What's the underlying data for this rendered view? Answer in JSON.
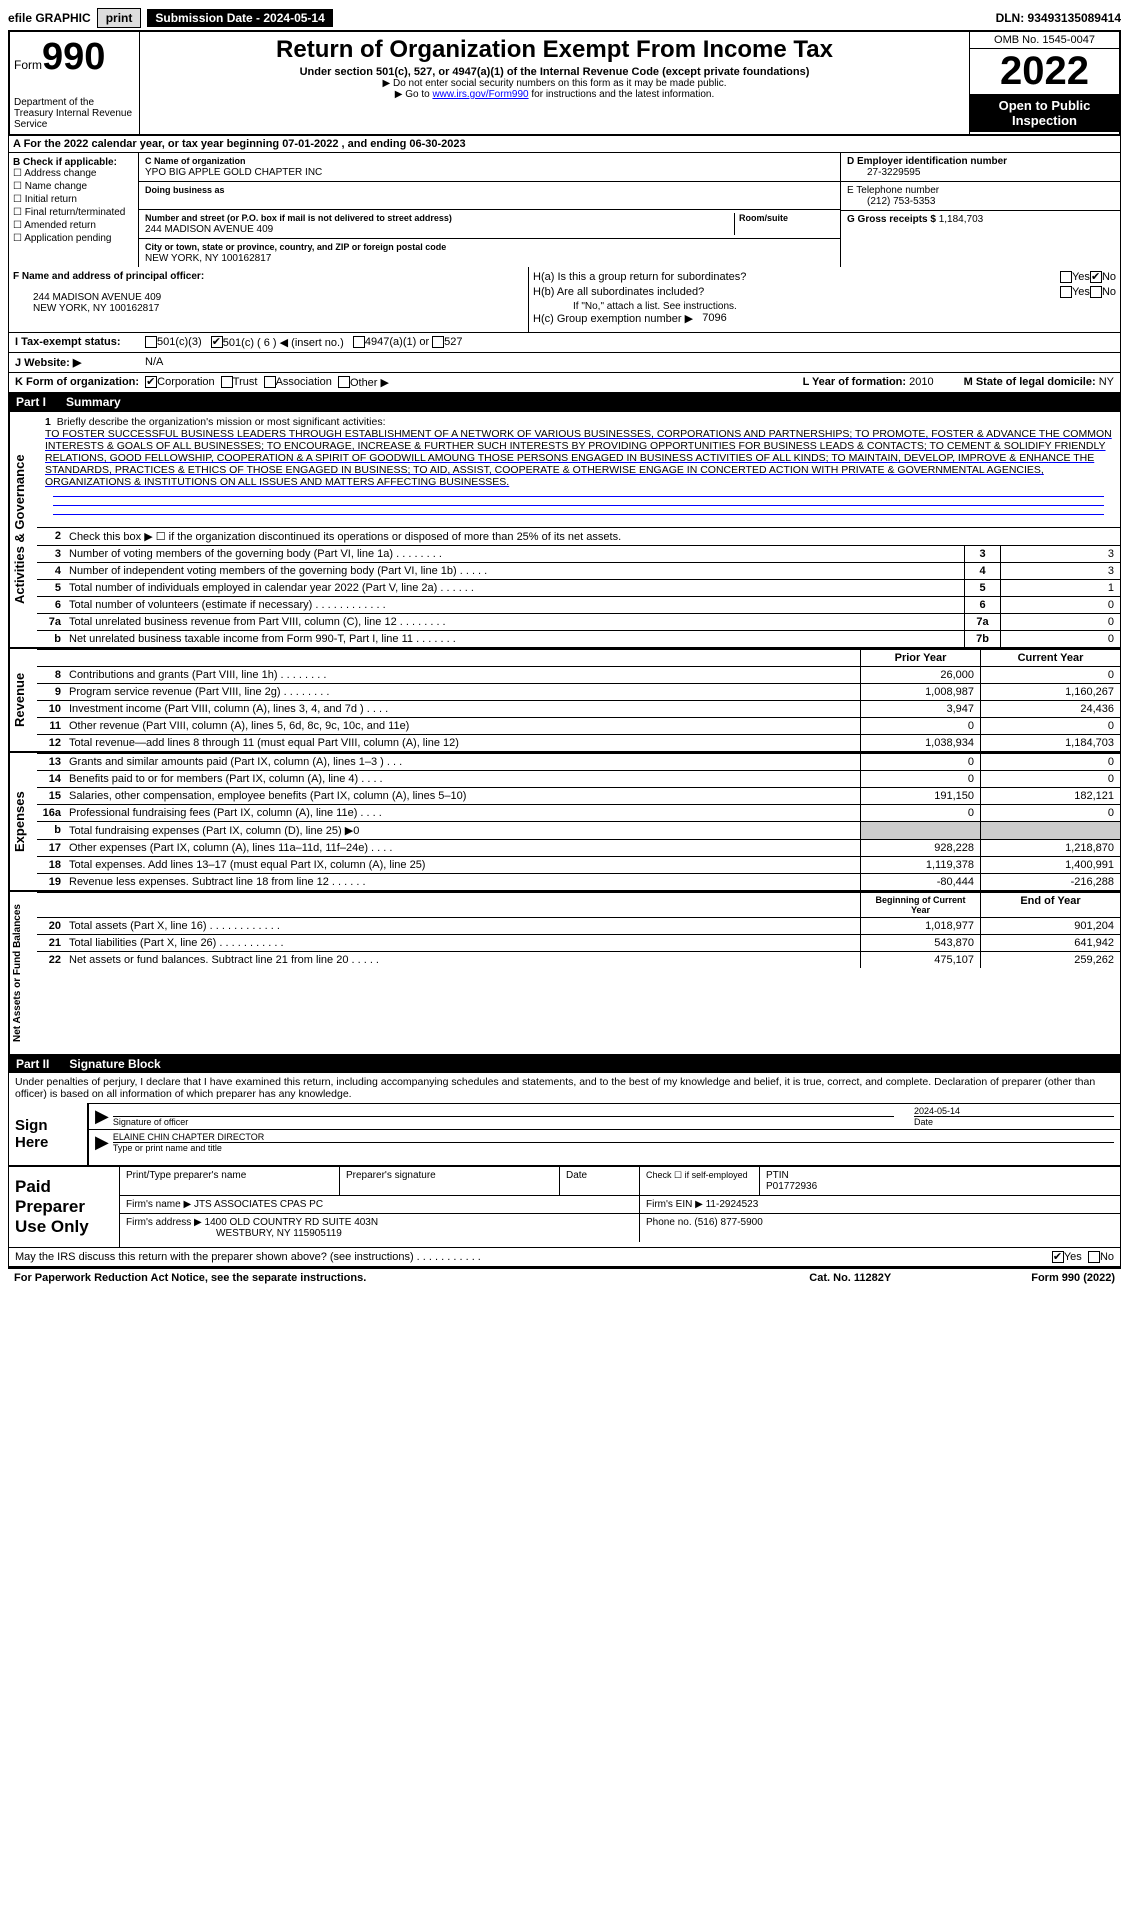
{
  "top": {
    "efile": "efile GRAPHIC",
    "print": "print",
    "submission": "Submission Date - 2024-05-14",
    "dln": "DLN: 93493135089414"
  },
  "header": {
    "form_prefix": "Form",
    "form_no": "990",
    "dept": "Department of the Treasury Internal Revenue Service",
    "title": "Return of Organization Exempt From Income Tax",
    "sub1": "Under section 501(c), 527, or 4947(a)(1) of the Internal Revenue Code (except private foundations)",
    "sub2": "▶ Do not enter social security numbers on this form as it may be made public.",
    "sub3a": "▶ Go to ",
    "sub3b": "www.irs.gov/Form990",
    "sub3c": " for instructions and the latest information.",
    "omb": "OMB No. 1545-0047",
    "year": "2022",
    "open": "Open to Public Inspection"
  },
  "secA": "A For the 2022 calendar year, or tax year beginning 07-01-2022    , and ending 06-30-2023",
  "colB": {
    "label": "B Check if applicable:",
    "items": [
      "Address change",
      "Name change",
      "Initial return",
      "Final return/terminated",
      "Amended return",
      "Application pending"
    ]
  },
  "colC": {
    "name_lab": "C Name of organization",
    "name": "YPO BIG APPLE GOLD CHAPTER INC",
    "dba_lab": "Doing business as",
    "dba": "",
    "addr_lab": "Number and street (or P.O. box if mail is not delivered to street address)",
    "addr": "244 MADISON AVENUE 409",
    "room_lab": "Room/suite",
    "city_lab": "City or town, state or province, country, and ZIP or foreign postal code",
    "city": "NEW YORK, NY  100162817"
  },
  "colDE": {
    "d_lab": "D Employer identification number",
    "d": "27-3229595",
    "e_lab": "E Telephone number",
    "e": "(212) 753-5353",
    "g_lab": "G Gross receipts $",
    "g": "1,184,703"
  },
  "blockF": {
    "f_lab": "F  Name and address of principal officer:",
    "f_addr1": "244 MADISON AVENUE 409",
    "f_addr2": "NEW YORK, NY  100162817"
  },
  "blockH": {
    "ha": "H(a)  Is this a group return for subordinates?",
    "hb": "H(b)  Are all subordinates included?",
    "hb_note": "If \"No,\" attach a list. See instructions.",
    "hc": "H(c)  Group exemption number ▶",
    "hc_val": "7096",
    "yes": "Yes",
    "no": "No"
  },
  "lineI": {
    "lab": "I    Tax-exempt status:",
    "o1": "501(c)(3)",
    "o2": "501(c) ( 6 ) ◀ (insert no.)",
    "o3": "4947(a)(1) or",
    "o4": "527"
  },
  "lineJ": {
    "lab": "J   Website: ▶",
    "val": "N/A"
  },
  "lineK": {
    "lab": "K Form of organization:",
    "o1": "Corporation",
    "o2": "Trust",
    "o3": "Association",
    "o4": "Other ▶",
    "l_lab": "L Year of formation:",
    "l": "2010",
    "m_lab": "M State of legal domicile:",
    "m": "NY"
  },
  "part1": {
    "hdr": "Part I",
    "title": "Summary"
  },
  "mission": {
    "n": "1",
    "lab": "Briefly describe the organization's mission or most significant activities:",
    "txt": "TO FOSTER SUCCESSFUL BUSINESS LEADERS THROUGH ESTABLISHMENT OF A NETWORK OF VARIOUS BUSINESSES, CORPORATIONS AND PARTNERSHIPS; TO PROMOTE, FOSTER & ADVANCE THE COMMON INTERESTS & GOALS OF ALL BUSINESSES; TO ENCOURAGE, INCREASE & FURTHER SUCH INTERESTS BY PROVIDING OPPORTUNITIES FOR BUSINESS LEADS & CONTACTS; TO CEMENT & SOLIDIFY FRIENDLY RELATIONS, GOOD FELLOWSHIP, COOPERATION & A SPIRIT OF GOODWILL AMOUNG THOSE PERSONS ENGAGED IN BUSINESS ACTIVITIES OF ALL KINDS; TO MAINTAIN, DEVELOP, IMPROVE & ENHANCE THE STANDARDS, PRACTICES & ETHICS OF THOSE ENGAGED IN BUSINESS; TO AID, ASSIST, COOPERATE & OTHERWISE ENGAGE IN CONCERTED ACTION WITH PRIVATE & GOVERNMENTAL AGENCIES, ORGANIZATIONS & INSTITUTIONS ON ALL ISSUES AND MATTERS AFFECTING BUSINESSES."
  },
  "vtabs": {
    "ag": "Activities & Governance",
    "rev": "Revenue",
    "exp": "Expenses",
    "na": "Net Assets or Fund Balances"
  },
  "rows_ag": [
    {
      "n": "2",
      "desc": "Check this box ▶ ☐  if the organization discontinued its operations or disposed of more than 25% of its net assets.",
      "nobox": true
    },
    {
      "n": "3",
      "desc": "Number of voting members of the governing body (Part VI, line 1a)    .    .    .    .    .    .    .    .",
      "bn": "3",
      "v": "3"
    },
    {
      "n": "4",
      "desc": "Number of independent voting members of the governing body (Part VI, line 1b)    .    .    .    .    .",
      "bn": "4",
      "v": "3"
    },
    {
      "n": "5",
      "desc": "Total number of individuals employed in calendar year 2022 (Part V, line 2a)    .    .    .    .    .    .",
      "bn": "5",
      "v": "1"
    },
    {
      "n": "6",
      "desc": "Total number of volunteers (estimate if necessary)   .    .    .    .    .    .    .    .    .    .    .    .",
      "bn": "6",
      "v": "0"
    },
    {
      "n": "7a",
      "desc": "Total unrelated business revenue from Part VIII, column (C), line 12   .    .    .    .    .    .    .    .",
      "bn": "7a",
      "v": "0"
    },
    {
      "n": "b",
      "desc": "Net unrelated business taxable income from Form 990-T, Part I, line 11   .    .    .    .    .    .    .",
      "bn": "7b",
      "v": "0"
    }
  ],
  "hdr_pc": {
    "py": "Prior Year",
    "cy": "Current Year"
  },
  "rows_rev": [
    {
      "n": "8",
      "desc": "Contributions and grants (Part VIII, line 1h)   .    .    .    .    .    .    .    .",
      "py": "26,000",
      "cy": "0"
    },
    {
      "n": "9",
      "desc": "Program service revenue (Part VIII, line 2g)   .    .    .    .    .    .    .    .",
      "py": "1,008,987",
      "cy": "1,160,267"
    },
    {
      "n": "10",
      "desc": "Investment income (Part VIII, column (A), lines 3, 4, and 7d )   .    .    .    .",
      "py": "3,947",
      "cy": "24,436"
    },
    {
      "n": "11",
      "desc": "Other revenue (Part VIII, column (A), lines 5, 6d, 8c, 9c, 10c, and 11e)",
      "py": "0",
      "cy": "0"
    },
    {
      "n": "12",
      "desc": "Total revenue—add lines 8 through 11 (must equal Part VIII, column (A), line 12)",
      "py": "1,038,934",
      "cy": "1,184,703"
    }
  ],
  "rows_exp": [
    {
      "n": "13",
      "desc": "Grants and similar amounts paid (Part IX, column (A), lines 1–3 )   .    .    .",
      "py": "0",
      "cy": "0"
    },
    {
      "n": "14",
      "desc": "Benefits paid to or for members (Part IX, column (A), line 4)   .    .    .    .",
      "py": "0",
      "cy": "0"
    },
    {
      "n": "15",
      "desc": "Salaries, other compensation, employee benefits (Part IX, column (A), lines 5–10)",
      "py": "191,150",
      "cy": "182,121"
    },
    {
      "n": "16a",
      "desc": "Professional fundraising fees (Part IX, column (A), line 11e)   .    .    .    .",
      "py": "0",
      "cy": "0"
    },
    {
      "n": "b",
      "desc": "Total fundraising expenses (Part IX, column (D), line 25) ▶0",
      "gray": true
    },
    {
      "n": "17",
      "desc": "Other expenses (Part IX, column (A), lines 11a–11d, 11f–24e)    .    .    .    .",
      "py": "928,228",
      "cy": "1,218,870"
    },
    {
      "n": "18",
      "desc": "Total expenses. Add lines 13–17 (must equal Part IX, column (A), line 25)",
      "py": "1,119,378",
      "cy": "1,400,991"
    },
    {
      "n": "19",
      "desc": "Revenue less expenses. Subtract line 18 from line 12   .    .    .    .    .    .",
      "py": "-80,444",
      "cy": "-216,288"
    }
  ],
  "hdr_na": {
    "boy": "Beginning of Current Year",
    "eoy": "End of Year"
  },
  "rows_na": [
    {
      "n": "20",
      "desc": "Total assets (Part X, line 16)   .    .    .    .    .    .    .    .    .    .    .    .",
      "py": "1,018,977",
      "cy": "901,204"
    },
    {
      "n": "21",
      "desc": "Total liabilities (Part X, line 26)   .    .    .    .    .    .    .    .    .    .    .",
      "py": "543,870",
      "cy": "641,942"
    },
    {
      "n": "22",
      "desc": "Net assets or fund balances. Subtract line 21 from line 20   .    .    .    .    .",
      "py": "475,107",
      "cy": "259,262"
    }
  ],
  "part2": {
    "hdr": "Part II",
    "title": "Signature Block"
  },
  "sig": {
    "pre": "Under penalties of perjury, I declare that I have examined this return, including accompanying schedules and statements, and to the best of my knowledge and belief, it is true, correct, and complete. Declaration of preparer (other than officer) is based on all information of which preparer has any knowledge.",
    "sign": "Sign Here",
    "sig_lab": "Signature of officer",
    "date": "2024-05-14",
    "date_lab": "Date",
    "name": "ELAINE CHIN  CHAPTER DIRECTOR",
    "name_lab": "Type or print name and title"
  },
  "paid": {
    "lab": "Paid Preparer Use Only",
    "pn_lab": "Print/Type preparer's name",
    "ps_lab": "Preparer's signature",
    "d_lab": "Date",
    "chk_lab": "Check ☐ if self-employed",
    "ptin_lab": "PTIN",
    "ptin": "P01772936",
    "fname_lab": "Firm's name    ▶",
    "fname": "JTS ASSOCIATES CPAS PC",
    "fein_lab": "Firm's EIN ▶",
    "fein": "11-2924523",
    "faddr_lab": "Firm's address ▶",
    "faddr1": "1400 OLD COUNTRY RD SUITE 403N",
    "faddr2": "WESTBURY, NY  115905119",
    "phone_lab": "Phone no.",
    "phone": "(516) 877-5900"
  },
  "footer": {
    "q": "May the IRS discuss this return with the preparer shown above? (see instructions)   .    .    .    .    .    .    .    .    .    .    .",
    "yes": "Yes",
    "no": "No"
  },
  "bottom": {
    "b1": "For Paperwork Reduction Act Notice, see the separate instructions.",
    "b2": "Cat. No. 11282Y",
    "b3": "Form 990 (2022)"
  }
}
